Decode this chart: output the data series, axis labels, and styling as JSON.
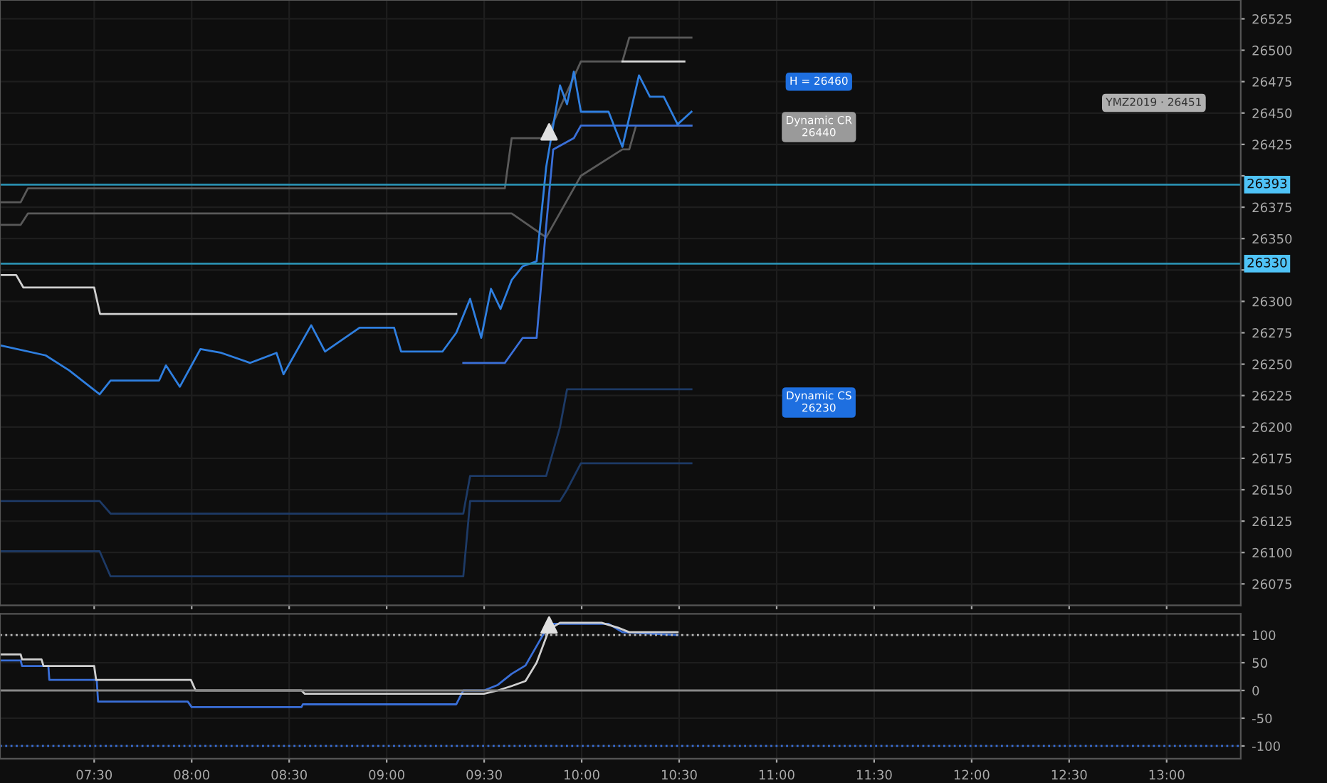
{
  "chart_data": [
    {
      "type": "line",
      "xlim": [
        7.017,
        13.38
      ],
      "ylim": [
        26058,
        26540
      ],
      "xticks": [
        {
          "value": 7.5,
          "label": null
        },
        {
          "value": 8.0,
          "label": null
        },
        {
          "value": 8.5,
          "label": null
        },
        {
          "value": 9.0,
          "label": null
        },
        {
          "value": 9.5,
          "label": null
        },
        {
          "value": 10.0,
          "label": null
        },
        {
          "value": 10.5,
          "label": null
        },
        {
          "value": 11.0,
          "label": null
        },
        {
          "value": 11.5,
          "label": null
        },
        {
          "value": 12.0,
          "label": null
        },
        {
          "value": 12.5,
          "label": null
        },
        {
          "value": 13.0,
          "label": null
        }
      ],
      "yticks": [
        26075,
        26100,
        26125,
        26150,
        26175,
        26200,
        26225,
        26250,
        26275,
        26300,
        {
          "value": 26325,
          "label": null
        },
        26350,
        26375,
        {
          "value": 26400,
          "label": null
        },
        26425,
        26450,
        26475,
        26500,
        26525
      ],
      "tick_labels": "y",
      "grid": true,
      "series": [
        {
          "color": "#5a5a5a",
          "x": [
            7.017,
            7.123,
            7.16,
            9.606,
            9.641,
            9.818,
            9.996,
            10.209,
            10.244,
            10.279,
            10.563
          ],
          "values": [
            26379,
            26379,
            26390,
            26390,
            26430,
            26430,
            26491,
            26491,
            26510,
            26510,
            26510
          ]
        },
        {
          "color": "#5a5a5a",
          "x": [
            7.017,
            7.123,
            7.16,
            9.606,
            9.641,
            9.818,
            9.996,
            10.209,
            10.244,
            10.279,
            10.563
          ],
          "values": [
            26361,
            26361,
            26370,
            26370,
            26370,
            26351,
            26400,
            26421,
            26421,
            26440,
            26440
          ]
        },
        {
          "color": "#1d3a66",
          "x": [
            7.017,
            7.528,
            7.584,
            9.393,
            9.428,
            9.818,
            9.889,
            9.925,
            9.996,
            10.563
          ],
          "values": [
            26141,
            26141,
            26131,
            26131,
            26161,
            26161,
            26200,
            26230,
            26230,
            26230
          ]
        },
        {
          "color": "#1d3a66",
          "x": [
            7.017,
            7.528,
            7.584,
            9.393,
            9.428,
            9.818,
            9.889,
            9.925,
            9.996,
            10.563
          ],
          "values": [
            26101,
            26101,
            26081,
            26081,
            26141,
            26141,
            26141,
            26150,
            26171,
            26171
          ]
        },
        {
          "color": "#d0d0d0",
          "x": [
            7.017,
            7.1,
            7.137,
            7.5,
            7.53,
            9.357
          ],
          "values": [
            26321,
            26321,
            26311,
            26311,
            26290,
            26290
          ]
        },
        {
          "color": "#3a6fd8",
          "x": [
            9.393,
            9.606,
            9.698,
            9.769,
            9.818,
            9.854,
            9.96,
            9.996,
            10.563
          ],
          "values": [
            26251,
            26251,
            26271,
            26271,
            26360,
            26421,
            26430,
            26440,
            26440
          ]
        },
        {
          "color": "#d8d8d8",
          "x": [
            10.209,
            10.527
          ],
          "values": [
            26491,
            26491
          ]
        },
        {
          "color": "#2f7fe0",
          "x": [
            7.017,
            7.251,
            7.372,
            7.528,
            7.584,
            7.833,
            7.868,
            7.939,
            8.045,
            8.152,
            8.3,
            8.435,
            8.471,
            8.613,
            8.684,
            8.861,
            9.038,
            9.074,
            9.286,
            9.357,
            9.428,
            9.485,
            9.535,
            9.584,
            9.641,
            9.698,
            9.769,
            9.818,
            9.889,
            9.925,
            9.96,
            9.996,
            10.138,
            10.209,
            10.294,
            10.35,
            10.421,
            10.492,
            10.563
          ],
          "values": [
            26265,
            26257,
            26245,
            26226,
            26237,
            26237,
            26249,
            26232,
            26262,
            26259,
            26251,
            26259,
            26242,
            26281,
            26260,
            26279,
            26279,
            26260,
            26260,
            26275,
            26302,
            26271,
            26310,
            26294,
            26317,
            26328,
            26332,
            26407,
            26472,
            26457,
            26483,
            26451,
            26451,
            26423,
            26480,
            26463,
            26463,
            26441,
            26451
          ]
        },
        {
          "type": "scatter",
          "color": "#e0e0e0",
          "marker": "triangle",
          "x": [
            9.833
          ],
          "values": [
            26435
          ]
        }
      ],
      "ref_lines": [
        {
          "axis": "y",
          "value": 26393,
          "label": "26393",
          "color": "#2a8fb0"
        },
        {
          "axis": "y",
          "value": 26330,
          "label": "26330",
          "color": "#2a8fb0"
        }
      ],
      "annotations": [
        "H = 26460",
        "Dynamic CR\n26440",
        "Dynamic CS\n26230",
        "YMZ2019 · 26451"
      ]
    },
    {
      "type": "line",
      "xlim": [
        7.017,
        13.38
      ],
      "ylim": [
        -123,
        138
      ],
      "xticks": [
        {
          "value": 7.5,
          "label": "07:30"
        },
        {
          "value": 8.0,
          "label": "08:00"
        },
        {
          "value": 8.5,
          "label": "08:30"
        },
        {
          "value": 9.0,
          "label": "09:00"
        },
        {
          "value": 9.5,
          "label": "09:30"
        },
        {
          "value": 10.0,
          "label": "10:00"
        },
        {
          "value": 10.5,
          "label": "10:30"
        },
        {
          "value": 11.0,
          "label": "11:00"
        },
        {
          "value": 11.5,
          "label": "11:30"
        },
        {
          "value": 12.0,
          "label": "12:00"
        },
        {
          "value": 12.5,
          "label": "12:30"
        },
        {
          "value": 13.0,
          "label": "13:00"
        }
      ],
      "yticks": [
        -100,
        -50,
        0,
        50,
        100
      ],
      "grid": true,
      "series": [
        {
          "color": "#3a6fd8",
          "x": [
            7.017,
            7.123,
            7.13,
            7.265,
            7.27,
            7.513,
            7.52,
            7.98,
            8.0,
            8.563,
            8.57,
            9.357,
            9.393,
            9.499,
            9.57,
            9.641,
            9.712,
            9.818,
            9.854,
            10.138,
            10.209,
            10.492
          ],
          "values": [
            54,
            54,
            44,
            44,
            19,
            19,
            -20,
            -20,
            -30,
            -30,
            -25,
            -25,
            0,
            0,
            10,
            30,
            45,
            110,
            120,
            120,
            105,
            100
          ]
        },
        {
          "color": "#d0d0d0",
          "x": [
            7.017,
            7.123,
            7.13,
            7.23,
            7.24,
            7.5,
            7.51,
            7.996,
            8.02,
            8.563,
            8.58,
            9.499,
            9.57,
            9.641,
            9.712,
            9.769,
            9.833,
            9.889,
            10.102,
            10.187,
            10.244,
            10.492
          ],
          "values": [
            65,
            65,
            56,
            56,
            44,
            44,
            19,
            19,
            0,
            0,
            -6,
            -6,
            0,
            8,
            17,
            50,
            110,
            122,
            122,
            113,
            105,
            105
          ]
        },
        {
          "type": "scatter",
          "color": "#e0e0e0",
          "marker": "triangle",
          "x": [
            9.833
          ],
          "values": [
            118
          ]
        }
      ],
      "ref_lines": [
        {
          "axis": "y",
          "value": 100,
          "color": "#bbbbbb",
          "line_style": "dotted"
        },
        {
          "axis": "y",
          "value": 0,
          "color": "#888888",
          "line_style": "solid"
        },
        {
          "axis": "y",
          "value": -100,
          "color": "#3a6fd8",
          "line_style": "dotted"
        }
      ]
    }
  ]
}
